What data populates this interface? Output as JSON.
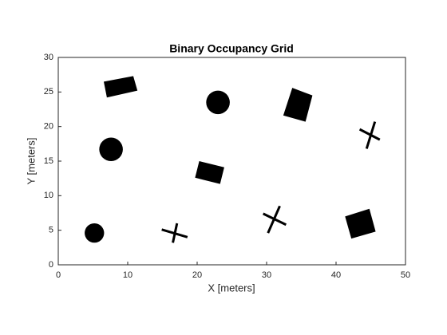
{
  "chart_data": {
    "type": "occupancy",
    "title": "Binary Occupancy Grid",
    "x_label": "X [meters]",
    "y_label": "Y [meters]",
    "xlim": [
      0,
      50
    ],
    "ylim": [
      0,
      30
    ],
    "xticks": [
      0,
      10,
      20,
      30,
      40,
      50
    ],
    "yticks": [
      0,
      5,
      10,
      15,
      20,
      25,
      30
    ],
    "color": "#000000",
    "circles": [
      {
        "center": [
          5.2,
          4.6
        ],
        "r": 1.4
      },
      {
        "center": [
          7.6,
          16.7
        ],
        "r": 1.7
      },
      {
        "center": [
          23,
          23.5
        ],
        "r": 1.7
      }
    ],
    "polygons": [
      [
        [
          6.55,
          26.5
        ],
        [
          10.8,
          27.3
        ],
        [
          11.4,
          25.2
        ],
        [
          7.0,
          24.2
        ]
      ],
      [
        [
          20.3,
          15.0
        ],
        [
          23.9,
          14.1
        ],
        [
          23.3,
          11.7
        ],
        [
          19.7,
          12.6
        ]
      ],
      [
        [
          33.7,
          25.6
        ],
        [
          36.6,
          24.5
        ],
        [
          35.6,
          20.7
        ],
        [
          32.4,
          21.6
        ]
      ],
      [
        [
          41.3,
          7.0
        ],
        [
          44.8,
          8.1
        ],
        [
          45.7,
          4.8
        ],
        [
          42.2,
          3.8
        ]
      ]
    ],
    "segments": [
      [
        [
          14.9,
          5.1
        ],
        [
          18.6,
          4.0
        ]
      ],
      [
        [
          17.1,
          6.0
        ],
        [
          16.5,
          3.2
        ]
      ],
      [
        [
          29.5,
          7.4
        ],
        [
          32.8,
          5.8
        ]
      ],
      [
        [
          31.9,
          8.5
        ],
        [
          30.2,
          4.6
        ]
      ],
      [
        [
          43.4,
          19.6
        ],
        [
          46.3,
          18.1
        ]
      ],
      [
        [
          45.6,
          20.7
        ],
        [
          44.4,
          16.8
        ]
      ]
    ]
  }
}
